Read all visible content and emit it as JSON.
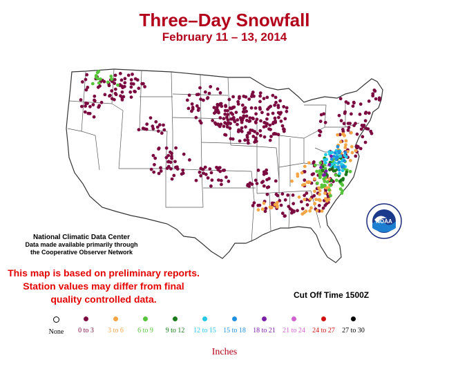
{
  "title": "Three–Day Snowfall",
  "subtitle": "February 11 – 13, 2014",
  "source": {
    "line1": "National Climatic Data Center",
    "line2": "Data made available primarily through",
    "line3": "the Cooperative Observer Network"
  },
  "disclaimer": {
    "line1": "This map is based on preliminary reports.",
    "line2": "Station values may differ from final",
    "line3": "quality controlled data."
  },
  "cutoff": "Cut Off Time 1500Z",
  "logo": {
    "text": "NOAA"
  },
  "legend": {
    "units": "Inches",
    "items": [
      {
        "label": "None",
        "color": "#ffffff",
        "text_color": "#000000"
      },
      {
        "label": "0 to 3",
        "color": "#7a0a3f",
        "text_color": "#7a0a3f"
      },
      {
        "label": "3 to 6",
        "color": "#f5a545",
        "text_color": "#f5a545"
      },
      {
        "label": "6 to 9",
        "color": "#55c43a",
        "text_color": "#55c43a"
      },
      {
        "label": "9 to 12",
        "color": "#1a7a1a",
        "text_color": "#1a7a1a"
      },
      {
        "label": "12 to 15",
        "color": "#22c8e6",
        "text_color": "#22c8e6"
      },
      {
        "label": "15 to 18",
        "color": "#1e90e0",
        "text_color": "#1e90e0"
      },
      {
        "label": "18 to 21",
        "color": "#7a1ea8",
        "text_color": "#7a1ea8"
      },
      {
        "label": "21 to 24",
        "color": "#d060d0",
        "text_color": "#d060d0"
      },
      {
        "label": "24 to 27",
        "color": "#d01010",
        "text_color": "#d01010"
      },
      {
        "label": "27 to 30",
        "color": "#000000",
        "text_color": "#000000"
      }
    ]
  }
}
